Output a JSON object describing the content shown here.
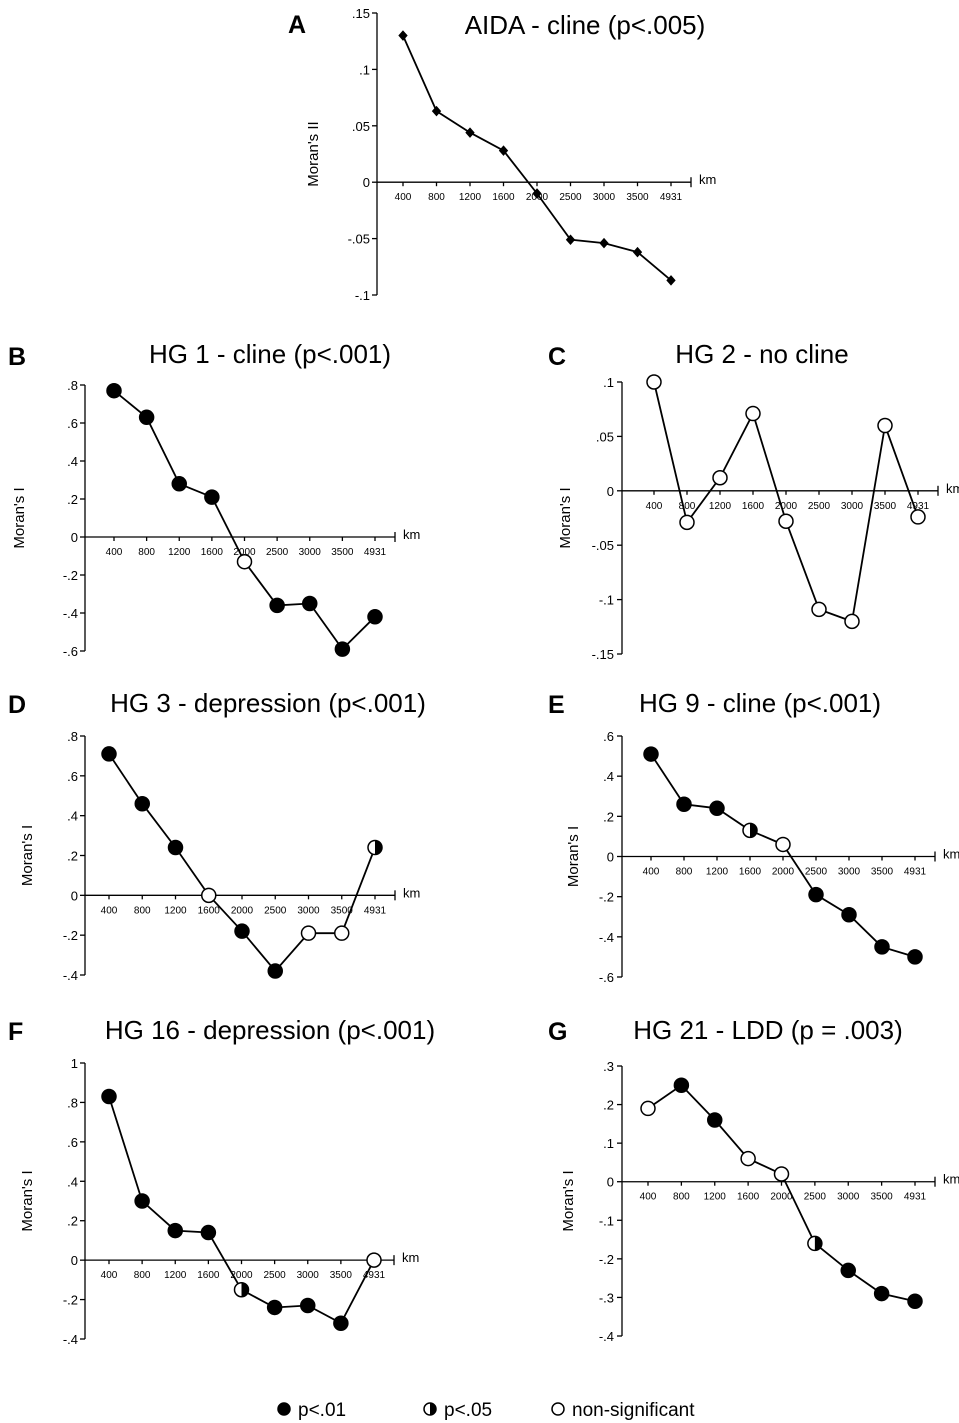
{
  "colors": {
    "ink": "#000000",
    "paper": "#ffffff"
  },
  "legend": {
    "items": [
      {
        "sig": "p01",
        "label": "p<.01"
      },
      {
        "sig": "p05",
        "label": "p<.05"
      },
      {
        "sig": "ns",
        "label": "non-significant"
      }
    ]
  },
  "chart_data": [
    {
      "type": "line",
      "letter": "A",
      "title": "AIDA - cline (p<.005)",
      "ylabel": "Moran's II",
      "xlabel": "km",
      "categories": [
        "400",
        "800",
        "1200",
        "1600",
        "2000",
        "2500",
        "3000",
        "3500",
        "4931"
      ],
      "yticks": [
        ".15",
        ".1",
        ".05",
        "0",
        "-.05",
        "-.1"
      ],
      "ylim": [
        -0.1,
        0.15
      ],
      "marker": "diamond",
      "values": [
        0.13,
        0.063,
        0.044,
        0.028,
        -0.01,
        -0.051,
        -0.054,
        -0.062,
        -0.087
      ],
      "significance": []
    },
    {
      "type": "line",
      "letter": "B",
      "title": "HG 1 - cline (p<.001)",
      "ylabel": "Moran's I",
      "xlabel": "km",
      "categories": [
        "400",
        "800",
        "1200",
        "1600",
        "2000",
        "2500",
        "3000",
        "3500",
        "4931"
      ],
      "yticks": [
        ".8",
        ".6",
        ".4",
        ".2",
        "0",
        "-.2",
        "-.4",
        "-.6"
      ],
      "ylim": [
        -0.6,
        0.8
      ],
      "marker": "circle",
      "values": [
        0.77,
        0.63,
        0.28,
        0.21,
        -0.13,
        -0.36,
        -0.35,
        -0.59,
        -0.42
      ],
      "significance": [
        "p01",
        "p01",
        "p01",
        "p01",
        "ns",
        "p01",
        "p01",
        "p01",
        "p01"
      ]
    },
    {
      "type": "line",
      "letter": "C",
      "title": "HG 2 - no cline",
      "ylabel": "Moran's I",
      "xlabel": "km",
      "categories": [
        "400",
        "800",
        "1200",
        "1600",
        "2000",
        "2500",
        "3000",
        "3500",
        "4931"
      ],
      "yticks": [
        ".1",
        ".05",
        "0",
        "-.05",
        "-.1",
        "-.15"
      ],
      "ylim": [
        -0.15,
        0.1
      ],
      "marker": "circle",
      "values": [
        0.1,
        -0.029,
        0.012,
        0.071,
        -0.028,
        -0.109,
        -0.12,
        0.06,
        -0.024
      ],
      "significance": [
        "ns",
        "ns",
        "ns",
        "ns",
        "ns",
        "ns",
        "ns",
        "ns",
        "ns"
      ]
    },
    {
      "type": "line",
      "letter": "D",
      "title": "HG 3 - depression (p<.001)",
      "ylabel": "Moran's I",
      "xlabel": "km",
      "categories": [
        "400",
        "800",
        "1200",
        "1600",
        "2000",
        "2500",
        "3000",
        "3500",
        "4931"
      ],
      "yticks": [
        ".8",
        ".6",
        ".4",
        ".2",
        "0",
        "-.2",
        "-.4"
      ],
      "ylim": [
        -0.4,
        0.8
      ],
      "marker": "circle",
      "values": [
        0.71,
        0.46,
        0.24,
        0.0,
        -0.18,
        -0.38,
        -0.19,
        -0.19,
        0.24
      ],
      "significance": [
        "p01",
        "p01",
        "p01",
        "ns",
        "p01",
        "p01",
        "ns",
        "ns",
        "p05"
      ]
    },
    {
      "type": "line",
      "letter": "E",
      "title": "HG 9 - cline (p<.001)",
      "ylabel": "Moran's I",
      "xlabel": "km",
      "categories": [
        "400",
        "800",
        "1200",
        "1600",
        "2000",
        "2500",
        "3000",
        "3500",
        "4931"
      ],
      "yticks": [
        ".6",
        ".4",
        ".2",
        "0",
        "-.2",
        "-.4",
        "-.6"
      ],
      "ylim": [
        -0.6,
        0.6
      ],
      "marker": "circle",
      "values": [
        0.51,
        0.26,
        0.24,
        0.13,
        0.06,
        -0.19,
        -0.29,
        -0.45,
        -0.5
      ],
      "significance": [
        "p01",
        "p01",
        "p01",
        "p05",
        "ns",
        "p01",
        "p01",
        "p01",
        "p01"
      ]
    },
    {
      "type": "line",
      "letter": "F",
      "title": "HG 16 - depression (p<.001)",
      "ylabel": "Moran's I",
      "xlabel": "km",
      "categories": [
        "400",
        "800",
        "1200",
        "1600",
        "2000",
        "2500",
        "3000",
        "3500",
        "4931"
      ],
      "yticks": [
        "1",
        ".8",
        ".6",
        ".4",
        ".2",
        "0",
        "-.2",
        "-.4"
      ],
      "ylim": [
        -0.4,
        1.0
      ],
      "marker": "circle",
      "values": [
        0.83,
        0.3,
        0.15,
        0.14,
        -0.15,
        -0.24,
        -0.23,
        -0.32,
        0.0
      ],
      "significance": [
        "p01",
        "p01",
        "p01",
        "p01",
        "p05",
        "p01",
        "p01",
        "p01",
        "ns"
      ]
    },
    {
      "type": "line",
      "letter": "G",
      "title": "HG 21 - LDD (p = .003)",
      "ylabel": "Moran's I",
      "xlabel": "km",
      "categories": [
        "400",
        "800",
        "1200",
        "1600",
        "2000",
        "2500",
        "3000",
        "3500",
        "4931"
      ],
      "yticks": [
        ".3",
        ".2",
        ".1",
        "0",
        "-.1",
        "-.2",
        "-.3",
        "-.4"
      ],
      "ylim": [
        -0.4,
        0.3
      ],
      "marker": "circle",
      "values": [
        0.19,
        0.25,
        0.16,
        0.06,
        0.02,
        -0.16,
        -0.23,
        -0.29,
        -0.31
      ],
      "significance": [
        "ns",
        "p01",
        "p01",
        "ns",
        "ns",
        "p05",
        "p01",
        "p01",
        "p01"
      ]
    }
  ]
}
